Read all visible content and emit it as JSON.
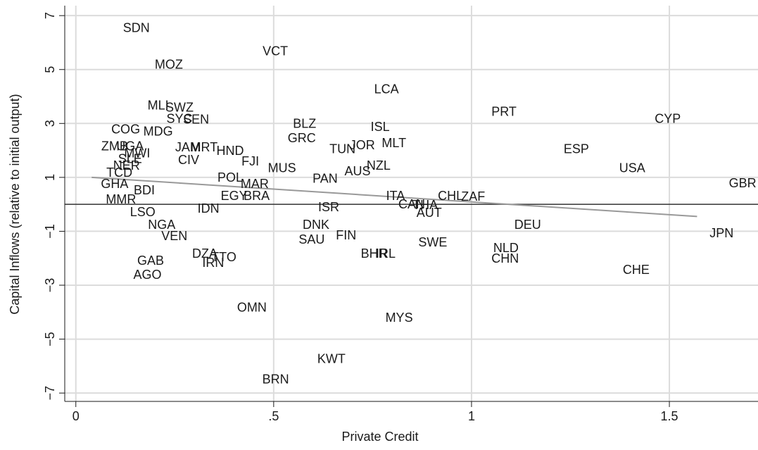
{
  "chart_data": {
    "type": "scatter",
    "x_label": "Private Credit",
    "y_label": "Capital Inflows (relative to initial output)",
    "xlim": [
      -0.028,
      1.724
    ],
    "ylim": [
      -7.31,
      7.37
    ],
    "xticks": [
      0,
      {
        "value": 0.5,
        "label": ".5"
      },
      1,
      1.5
    ],
    "yticks": [
      {
        "value": -7,
        "label": "−7"
      },
      {
        "value": -5,
        "label": "−5"
      },
      {
        "value": -3,
        "label": "−3"
      },
      {
        "value": -1,
        "label": "−1"
      },
      1,
      3,
      5,
      7
    ],
    "grid": true,
    "zero_line": true,
    "color": "#1a1a1a",
    "fit_line": {
      "x": [
        0.04,
        1.57
      ],
      "y": [
        1.0,
        -0.45
      ],
      "color": "#999999"
    },
    "labels": [
      "SDN",
      "VCT",
      "MOZ",
      "LCA",
      "PRT",
      "CYP",
      "MLI",
      "SWZ",
      "SYC",
      "SEN",
      "COG",
      "MDG",
      "BLZ",
      "ISL",
      "GRC",
      "MLT",
      "JOR",
      "TUN",
      "ESP",
      "ZMB",
      "UGA",
      "JAM",
      "MRT",
      "HND",
      "MWI",
      "NER",
      "FJI",
      "CIV",
      "NZL",
      "MUS",
      "USA",
      "AUS",
      "SLE",
      "TCD",
      "PAN",
      "POL",
      "GBR",
      "MAR",
      "GHA",
      "MMR",
      "BRA",
      "ITA",
      "CHL",
      "ZAF",
      "EGY",
      "IDN",
      "ISR",
      "CAN",
      "THA",
      "AUT",
      "LSO",
      "NGA",
      "DNK",
      "DEU",
      "JPN",
      "VEN",
      "FIN",
      "SAU",
      "SWE",
      "NLD",
      "BHR",
      "IRL",
      "CHN",
      "DZA",
      "TTO",
      "IRN",
      "GAB",
      "AGO",
      "CHE",
      "OMN",
      "MYS",
      "KWT",
      "BRN",
      "BDI"
    ],
    "x": [
      0.153,
      0.504,
      0.235,
      0.785,
      1.082,
      1.496,
      0.208,
      0.262,
      0.262,
      0.304,
      0.126,
      0.208,
      0.578,
      0.769,
      0.571,
      0.804,
      0.724,
      0.674,
      1.265,
      0.098,
      0.137,
      0.283,
      0.324,
      0.39,
      0.155,
      0.128,
      0.441,
      0.285,
      0.765,
      0.521,
      1.406,
      0.712,
      0.137,
      0.11,
      0.63,
      0.39,
      1.685,
      0.452,
      0.098,
      0.114,
      0.457,
      0.808,
      0.947,
      1.004,
      0.4,
      0.335,
      0.639,
      0.849,
      0.883,
      0.893,
      0.169,
      0.217,
      0.607,
      1.142,
      1.632,
      0.249,
      0.683,
      0.596,
      0.902,
      1.087,
      0.754,
      0.783,
      1.085,
      0.326,
      0.374,
      0.347,
      0.189,
      0.181,
      1.416,
      0.445,
      0.817,
      0.646,
      0.505,
      0.173
    ],
    "y": [
      6.52,
      5.65,
      5.16,
      4.24,
      3.4,
      3.14,
      3.64,
      3.56,
      3.14,
      3.12,
      2.75,
      2.67,
      2.96,
      2.85,
      2.43,
      2.25,
      2.17,
      2.02,
      2.02,
      2.12,
      2.12,
      2.09,
      2.09,
      1.96,
      1.86,
      1.41,
      1.57,
      1.62,
      1.41,
      1.31,
      1.31,
      1.2,
      1.65,
      1.15,
      0.92,
      0.97,
      0.76,
      0.73,
      0.73,
      0.16,
      0.29,
      0.29,
      0.29,
      0.26,
      0.29,
      -0.18,
      -0.13,
      -0.03,
      -0.05,
      -0.34,
      -0.31,
      -0.79,
      -0.79,
      -0.79,
      -1.1,
      -1.2,
      -1.18,
      -1.34,
      -1.44,
      -1.65,
      -1.86,
      -1.86,
      -2.04,
      -1.86,
      -1.99,
      -2.2,
      -2.12,
      -2.64,
      -2.46,
      -3.85,
      -4.24,
      -5.76,
      -6.52,
      0.5
    ]
  }
}
